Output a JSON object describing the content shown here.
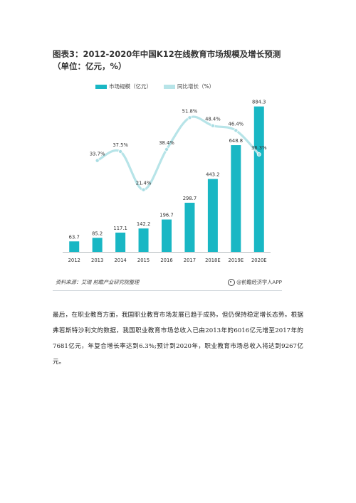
{
  "chart_data": {
    "type": "bar",
    "title": "图表3：2012-2020年中国K12在线教育市场规模及增长预测（单位：亿元，%）",
    "categories": [
      "2012",
      "2013",
      "2014",
      "2015",
      "2016",
      "2017",
      "2018E",
      "2019E",
      "2020E"
    ],
    "series": [
      {
        "name": "市场规模（亿元）",
        "type": "bar",
        "values": [
          63.7,
          85.2,
          117.1,
          142.2,
          196.7,
          298.7,
          443.2,
          648.8,
          884.3
        ],
        "labels": [
          "63.7",
          "85.2",
          "117.1",
          "142.2",
          "196.7",
          "298.7",
          "443.2",
          "648.8",
          "884.3"
        ]
      },
      {
        "name": "同比增长（%）",
        "type": "line",
        "values": [
          null,
          33.7,
          37.5,
          21.4,
          38.4,
          51.8,
          48.4,
          46.4,
          36.3
        ],
        "labels": [
          "",
          "33.7%",
          "37.5%",
          "21.4%",
          "38.4%",
          "51.8%",
          "48.4%",
          "46.4%",
          "36.3%"
        ]
      }
    ],
    "ylim_bar": [
      0,
      900
    ],
    "ylim_line": [
      0,
      60
    ],
    "grid": false,
    "legend_position": "top"
  },
  "colors": {
    "bar": "#19b7c4",
    "line": "#b7e4e8",
    "marker": "#a9dde3"
  },
  "source": {
    "left": "资料来源：艾瑞 前瞻产业研究院整理",
    "right": "@前瞻经济学人APP"
  },
  "body_text": "最后，在职业教育方面，我国职业教育市场发展已趋于成熟，但仍保持稳定增长态势。根据弗若斯特沙利文的数据，我国职业教育市场总收入已由2013年的6016亿元增至2017年的7681亿元，年复合增长率达到6.3%;预计到2020年，职业教育市场总收入将达到9267亿元。"
}
